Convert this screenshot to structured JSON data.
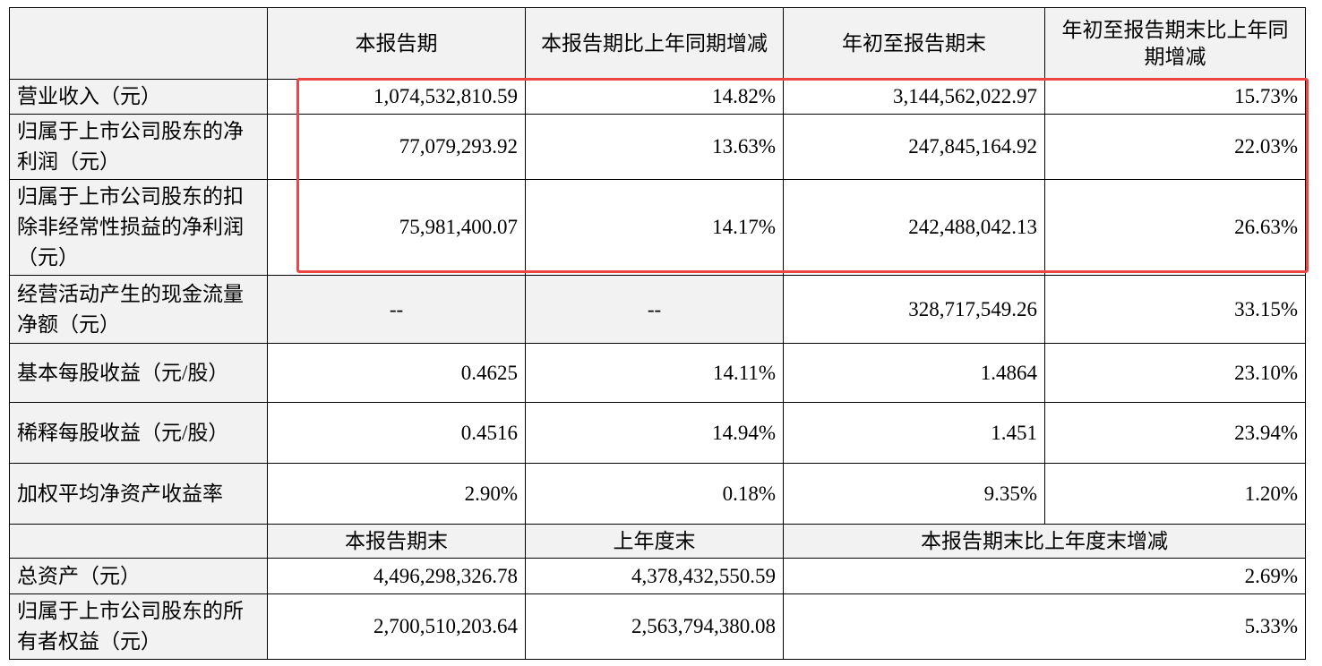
{
  "table": {
    "header": [
      "本报告期",
      "本报告期比上年同期增减",
      "年初至报告期末",
      "年初至报告期末比上年同期增减"
    ],
    "rows": [
      [
        "营业收入（元）",
        "1,074,532,810.59",
        "14.82%",
        "3,144,562,022.97",
        "15.73%"
      ],
      [
        "归属于上市公司股东的净利润（元）",
        "77,079,293.92",
        "13.63%",
        "247,845,164.92",
        "22.03%"
      ],
      [
        "归属于上市公司股东的扣除非经常性损益的净利润（元）",
        "75,981,400.07",
        "14.17%",
        "242,488,042.13",
        "26.63%"
      ],
      [
        "经营活动产生的现金流量净额（元）",
        "--",
        "--",
        "328,717,549.26",
        "33.15%"
      ],
      [
        "基本每股收益（元/股）",
        "0.4625",
        "14.11%",
        "1.4864",
        "23.10%"
      ],
      [
        "稀释每股收益（元/股）",
        "0.4516",
        "14.94%",
        "1.451",
        "23.94%"
      ],
      [
        "加权平均净资产收益率",
        "2.90%",
        "0.18%",
        "9.35%",
        "1.20%"
      ]
    ],
    "subheader": [
      "本报告期末",
      "上年度末",
      "本报告期末比上年度末增减"
    ],
    "balance_rows": [
      [
        "总资产（元）",
        "4,496,298,326.78",
        "4,378,432,550.59",
        "2.69%"
      ],
      [
        "归属于上市公司股东的所有者权益（元）",
        "2,700,510,203.64",
        "2,563,794,380.08",
        "5.33%"
      ]
    ]
  }
}
